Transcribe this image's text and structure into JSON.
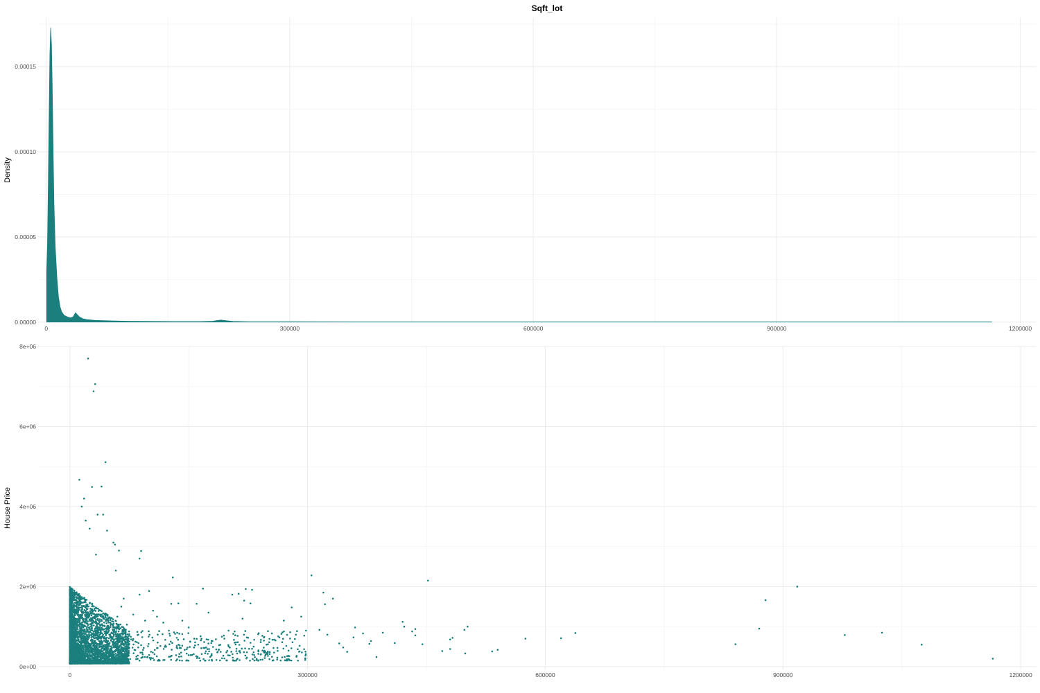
{
  "title": "Sqft_lot",
  "colors": {
    "fill": "#1b7f7d",
    "point": "#1b7f7d",
    "grid_major": "#ebebeb",
    "grid_minor": "#f3f3f3",
    "tick_text": "#4d4d4d"
  },
  "chart_data": [
    {
      "type": "area",
      "title": "Sqft_lot",
      "xlabel": "",
      "ylabel": "Density",
      "xlim": [
        -10000,
        1220000
      ],
      "ylim": [
        -5e-07,
        0.000179
      ],
      "grid": true,
      "legend": "none",
      "x_ticks": [
        {
          "value": 0,
          "label": "0"
        },
        {
          "value": 300000,
          "label": "300000"
        },
        {
          "value": 600000,
          "label": "600000"
        },
        {
          "value": 900000,
          "label": "900000"
        },
        {
          "value": 1200000,
          "label": "1200000"
        }
      ],
      "y_ticks": [
        {
          "value": 0,
          "label": "0.00000"
        },
        {
          "value": 5e-05,
          "label": "0.00005"
        },
        {
          "value": 0.0001,
          "label": "0.00010"
        },
        {
          "value": 0.00015,
          "label": "0.00015"
        }
      ],
      "series": [
        {
          "x": [
            520,
            1500,
            2500,
            3500,
            4500,
            5500,
            6500,
            7500,
            8500,
            9500,
            11000,
            13000,
            15000,
            17000,
            19000,
            22000,
            26000,
            30000,
            33000,
            36000,
            38000,
            41000,
            45000,
            50000,
            60000,
            80000,
            100000,
            130000,
            160000,
            190000,
            205000,
            215000,
            220000,
            230000,
            250000,
            300000,
            400000,
            500000,
            700000,
            900000,
            1164794
          ],
          "y": [
            3e-05,
            4.5e-05,
            8e-05,
            0.00012,
            0.000158,
            0.000173,
            0.000162,
            0.000135,
            0.0001,
            7e-05,
            4.5e-05,
            2.7e-05,
            1.5e-05,
            9e-06,
            6e-06,
            4e-06,
            3e-06,
            2.5e-06,
            3e-06,
            5.5e-06,
            4.5e-06,
            3e-06,
            2e-06,
            1.5e-06,
            1e-06,
            7e-07,
            5e-07,
            4e-07,
            3e-07,
            3e-07,
            5e-07,
            1.2e-06,
            9e-07,
            4e-07,
            2e-07,
            2e-07,
            1e-07,
            1e-07,
            1e-07,
            1e-07,
            1e-07
          ]
        }
      ]
    },
    {
      "type": "scatter",
      "xlabel": "",
      "ylabel": "House Price",
      "xlim": [
        -40000,
        1220000
      ],
      "ylim": [
        -70000,
        8000000
      ],
      "grid": true,
      "legend": "none",
      "x_ticks": [
        {
          "value": 0,
          "label": "0"
        },
        {
          "value": 300000,
          "label": "300000"
        },
        {
          "value": 600000,
          "label": "600000"
        },
        {
          "value": 900000,
          "label": "900000"
        },
        {
          "value": 1200000,
          "label": "1200000"
        }
      ],
      "y_ticks": [
        {
          "value": 0,
          "label": "0e+00"
        },
        {
          "value": 2000000,
          "label": "2e+06"
        },
        {
          "value": 4000000,
          "label": "4e+06"
        },
        {
          "value": 6000000,
          "label": "6e+06"
        },
        {
          "value": 8000000,
          "label": "8e+06"
        }
      ],
      "points": [
        [
          23000,
          7700000
        ],
        [
          32000,
          7060000
        ],
        [
          30000,
          6880000
        ],
        [
          45000,
          5110000
        ],
        [
          12000,
          4670000
        ],
        [
          28000,
          4490000
        ],
        [
          40000,
          4500000
        ],
        [
          35000,
          3800000
        ],
        [
          42000,
          3800000
        ],
        [
          20000,
          3650000
        ],
        [
          18000,
          4200000
        ],
        [
          15000,
          4000000
        ],
        [
          25000,
          3450000
        ],
        [
          47000,
          3400000
        ],
        [
          55000,
          3100000
        ],
        [
          57000,
          3050000
        ],
        [
          62000,
          2900000
        ],
        [
          90000,
          2890000
        ],
        [
          88000,
          2700000
        ],
        [
          33000,
          2800000
        ],
        [
          58000,
          2400000
        ],
        [
          130000,
          2230000
        ],
        [
          305000,
          2280000
        ],
        [
          452000,
          2150000
        ],
        [
          320000,
          1850000
        ],
        [
          332000,
          1700000
        ],
        [
          322000,
          1560000
        ],
        [
          168000,
          1950000
        ],
        [
          222000,
          1940000
        ],
        [
          230000,
          1920000
        ],
        [
          205000,
          1800000
        ],
        [
          213000,
          1820000
        ],
        [
          220000,
          1650000
        ],
        [
          228000,
          1580000
        ],
        [
          128000,
          1570000
        ],
        [
          137000,
          1580000
        ],
        [
          160000,
          1570000
        ],
        [
          175000,
          1350000
        ],
        [
          88000,
          1800000
        ],
        [
          100000,
          1890000
        ],
        [
          68000,
          1700000
        ],
        [
          280000,
          1480000
        ],
        [
          292000,
          1250000
        ],
        [
          270000,
          1150000
        ],
        [
          218000,
          1200000
        ],
        [
          420000,
          1120000
        ],
        [
          422000,
          1000000
        ],
        [
          436000,
          940000
        ],
        [
          432000,
          880000
        ],
        [
          436000,
          780000
        ],
        [
          360000,
          980000
        ],
        [
          370000,
          830000
        ],
        [
          358000,
          730000
        ],
        [
          380000,
          640000
        ],
        [
          378000,
          570000
        ],
        [
          387000,
          240000
        ],
        [
          395000,
          850000
        ],
        [
          480000,
          680000
        ],
        [
          498000,
          920000
        ],
        [
          502000,
          1000000
        ],
        [
          483000,
          720000
        ],
        [
          533000,
          380000
        ],
        [
          540000,
          420000
        ],
        [
          575000,
          700000
        ],
        [
          620000,
          710000
        ],
        [
          638000,
          840000
        ],
        [
          499000,
          330000
        ],
        [
          480000,
          440000
        ],
        [
          470000,
          390000
        ],
        [
          410000,
          590000
        ],
        [
          445000,
          560000
        ],
        [
          340000,
          580000
        ],
        [
          315000,
          920000
        ],
        [
          325000,
          800000
        ],
        [
          345000,
          480000
        ],
        [
          350000,
          370000
        ],
        [
          840000,
          560000
        ],
        [
          870000,
          950000
        ],
        [
          878000,
          1660000
        ],
        [
          918000,
          2000000
        ],
        [
          978000,
          790000
        ],
        [
          1025000,
          850000
        ],
        [
          1075000,
          550000
        ],
        [
          1164794,
          200000
        ],
        [
          145000,
          420000
        ],
        [
          152000,
          620000
        ],
        [
          158000,
          530000
        ],
        [
          165000,
          760000
        ],
        [
          172000,
          480000
        ],
        [
          180000,
          640000
        ],
        [
          188000,
          430000
        ],
        [
          195000,
          700000
        ],
        [
          200000,
          540000
        ],
        [
          208000,
          880000
        ],
        [
          212000,
          610000
        ],
        [
          217000,
          450000
        ],
        [
          225000,
          720000
        ],
        [
          232000,
          500000
        ],
        [
          238000,
          380000
        ],
        [
          245000,
          650000
        ],
        [
          250000,
          560000
        ],
        [
          255000,
          830000
        ],
        [
          262000,
          470000
        ],
        [
          268000,
          610000
        ],
        [
          276000,
          400000
        ],
        [
          284000,
          690000
        ],
        [
          290000,
          520000
        ],
        [
          298000,
          900000
        ],
        [
          110000,
          1250000
        ],
        [
          118000,
          1100000
        ],
        [
          125000,
          900000
        ],
        [
          135000,
          720000
        ],
        [
          142000,
          1150000
        ],
        [
          150000,
          980000
        ],
        [
          105000,
          1400000
        ],
        [
          95000,
          1150000
        ],
        [
          80000,
          1300000
        ],
        [
          72000,
          1050000
        ],
        [
          65000,
          1500000
        ],
        [
          60000,
          1250000
        ]
      ],
      "cluster": {
        "x_range": [
          0,
          75000
        ],
        "y_range": [
          80000,
          2000000
        ],
        "count": 4200
      }
    }
  ]
}
